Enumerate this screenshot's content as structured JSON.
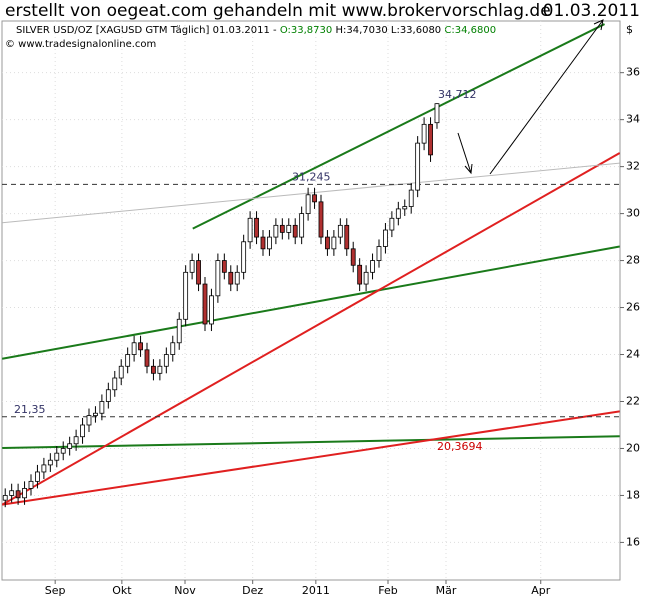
{
  "chart_data": {
    "type": "candlestick",
    "title": "erstellt von oegeat.com gehandeln mit www.brokervorschlag.de",
    "date": "01.03.2011",
    "info": [
      {
        "text": "SILVER USD/OZ [XAGUSD GTM  Täglich] 01.03.2011 -",
        "color": "#000000"
      },
      {
        "text": "O:33,8730",
        "color": "#008000"
      },
      {
        "text": "H:34,7030 L:33,6080",
        "color": "#000000"
      },
      {
        "text": "C:34,6800",
        "color": "#008000"
      }
    ],
    "copyright": "© www.tradesignalonline.com",
    "currency": "$",
    "series": {
      "open": [
        17.8,
        18.0,
        18.2,
        17.9,
        18.3,
        18.6,
        19.0,
        19.3,
        19.5,
        19.8,
        20.0,
        20.2,
        20.5,
        21.0,
        21.4,
        21.5,
        22.0,
        22.5,
        23.0,
        23.5,
        24.0,
        24.5,
        24.2,
        23.5,
        23.2,
        23.5,
        24.0,
        24.5,
        25.5,
        27.5,
        28.0,
        27.0,
        25.3,
        26.5,
        28.0,
        27.5,
        27.0,
        27.5,
        28.8,
        29.8,
        29.0,
        28.5,
        29.0,
        29.5,
        29.2,
        29.5,
        29.0,
        30.0,
        30.8,
        30.5,
        29.0,
        28.5,
        29.0,
        29.5,
        28.5,
        27.8,
        27.0,
        27.5,
        28.0,
        28.6,
        29.3,
        29.8,
        30.2,
        30.3,
        31.0,
        33.0,
        33.8,
        33.87
      ],
      "high": [
        18.3,
        18.5,
        18.5,
        18.6,
        18.9,
        19.3,
        19.6,
        19.8,
        20.1,
        20.3,
        20.5,
        20.8,
        21.3,
        21.7,
        21.8,
        22.3,
        22.8,
        23.3,
        23.8,
        24.3,
        24.8,
        24.8,
        24.5,
        23.8,
        23.8,
        24.3,
        24.8,
        25.8,
        27.8,
        28.3,
        28.3,
        27.3,
        26.8,
        28.3,
        28.3,
        27.8,
        27.8,
        29.1,
        30.1,
        30.1,
        29.3,
        29.3,
        29.8,
        29.8,
        29.8,
        29.8,
        30.3,
        31.1,
        31.1,
        30.8,
        29.3,
        29.3,
        29.8,
        29.8,
        28.8,
        28.1,
        27.8,
        28.3,
        28.9,
        29.6,
        30.1,
        30.5,
        30.6,
        31.3,
        33.3,
        34.1,
        34.1,
        34.7
      ],
      "low": [
        17.5,
        17.7,
        17.6,
        17.6,
        18.0,
        18.3,
        18.7,
        19.0,
        19.2,
        19.5,
        19.7,
        19.9,
        20.2,
        20.7,
        21.1,
        21.2,
        21.7,
        22.2,
        22.7,
        23.2,
        23.7,
        23.9,
        23.2,
        22.9,
        22.9,
        23.2,
        23.7,
        24.2,
        25.2,
        27.2,
        26.7,
        25.0,
        25.0,
        26.2,
        27.2,
        26.7,
        26.7,
        27.2,
        28.5,
        28.7,
        28.2,
        28.2,
        28.7,
        28.9,
        28.9,
        28.7,
        28.7,
        29.7,
        30.2,
        28.7,
        28.2,
        28.2,
        28.7,
        28.2,
        27.5,
        26.7,
        26.7,
        27.2,
        27.7,
        28.3,
        29.0,
        29.5,
        29.9,
        30.0,
        30.7,
        32.7,
        32.2,
        33.61
      ],
      "close": [
        18.0,
        18.2,
        17.9,
        18.3,
        18.6,
        19.0,
        19.3,
        19.5,
        19.8,
        20.0,
        20.2,
        20.5,
        21.0,
        21.4,
        21.5,
        22.0,
        22.5,
        23.0,
        23.5,
        24.0,
        24.5,
        24.2,
        23.5,
        23.2,
        23.5,
        24.0,
        24.5,
        25.5,
        27.5,
        28.0,
        27.0,
        25.3,
        26.5,
        28.0,
        27.5,
        27.0,
        27.5,
        28.8,
        29.8,
        29.0,
        28.5,
        29.0,
        29.5,
        29.2,
        29.5,
        29.0,
        30.0,
        30.8,
        30.5,
        29.0,
        28.5,
        29.0,
        29.5,
        28.5,
        27.8,
        27.0,
        27.5,
        28.0,
        28.6,
        29.3,
        29.8,
        30.2,
        30.3,
        31.0,
        33.0,
        33.8,
        32.5,
        34.68
      ],
      "up_color": "#ffffff",
      "down_color": "#b03030"
    },
    "xlim": [
      -0.5,
      95.4
    ],
    "xticks": [
      {
        "value": 7.75,
        "label": "Sep"
      },
      {
        "value": 18.1,
        "label": "Okt"
      },
      {
        "value": 27.9,
        "label": "Nov"
      },
      {
        "value": 38.4,
        "label": "Dez"
      },
      {
        "value": 48.2,
        "label": "2011"
      },
      {
        "value": 59.4,
        "label": "Feb"
      },
      {
        "value": 68.4,
        "label": "Mär"
      },
      {
        "value": 83.1,
        "label": "Apr"
      }
    ],
    "ylim": [
      14.4,
      38.2
    ],
    "yticks": [
      16,
      18,
      20,
      22,
      24,
      26,
      28,
      30,
      32,
      34,
      36
    ],
    "grid": true,
    "levels": [
      {
        "value": 31.245,
        "label": "31,245",
        "color": "#333366"
      },
      {
        "value": 21.35,
        "label": "21,35",
        "color": "#333366"
      }
    ],
    "annotations": [
      {
        "value": 34.712,
        "label": "34,712",
        "color": "#333366"
      },
      {
        "value": 20.3694,
        "label": "20,3694",
        "color": "#cc0000"
      }
    ],
    "lines": [
      {
        "color": "#1a7a1a",
        "x": [
          29.1,
          93.0
        ],
        "y": [
          29.36,
          38.07
        ]
      },
      {
        "color": "#1a7a1a",
        "x": [
          -0.47,
          95.35
        ],
        "y": [
          23.82,
          28.6
        ]
      },
      {
        "color": "#1a7a1a",
        "x": [
          -0.47,
          95.35
        ],
        "y": [
          20.02,
          20.52
        ]
      },
      {
        "color": "#e02020",
        "x": [
          -0.47,
          95.35
        ],
        "y": [
          17.61,
          32.58
        ]
      },
      {
        "color": "#e02020",
        "x": [
          -0.47,
          95.35
        ],
        "y": [
          17.61,
          21.58
        ]
      },
      {
        "color": "#bbbbbb",
        "x": [
          -0.47,
          95.35
        ],
        "y": [
          29.61,
          32.15
        ]
      }
    ]
  }
}
